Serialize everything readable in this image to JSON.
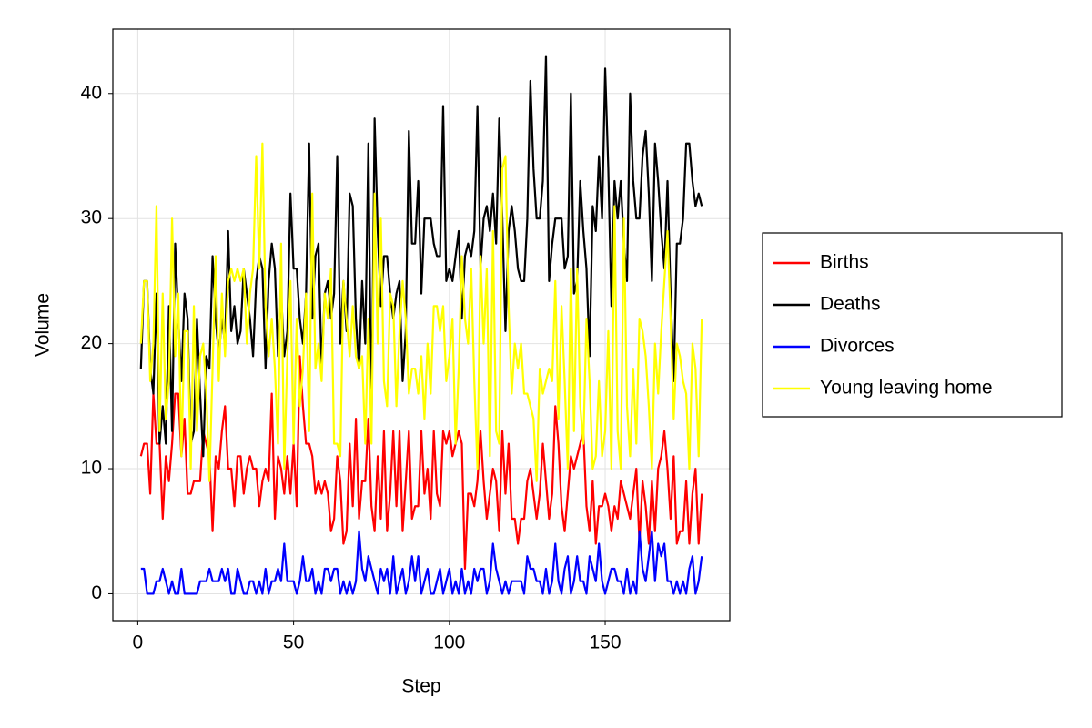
{
  "chart_data": {
    "type": "line",
    "xlabel": "Step",
    "ylabel": "Volume",
    "x": [
      1,
      2,
      3,
      4,
      5,
      6,
      7,
      8,
      9,
      10,
      11,
      12,
      13,
      14,
      15,
      16,
      17,
      18,
      19,
      20,
      21,
      22,
      23,
      24,
      25,
      26,
      27,
      28,
      29,
      30,
      31,
      32,
      33,
      34,
      35,
      36,
      37,
      38,
      39,
      40,
      41,
      42,
      43,
      44,
      45,
      46,
      47,
      48,
      49,
      50,
      51,
      52,
      53,
      54,
      55,
      56,
      57,
      58,
      59,
      60,
      61,
      62,
      63,
      64,
      65,
      66,
      67,
      68,
      69,
      70,
      71,
      72,
      73,
      74,
      75,
      76,
      77,
      78,
      79,
      80,
      81,
      82,
      83,
      84,
      85,
      86,
      87,
      88,
      89,
      90,
      91,
      92,
      93,
      94,
      95,
      96,
      97,
      98,
      99,
      100,
      101,
      102,
      103,
      104,
      105,
      106,
      107,
      108,
      109,
      110,
      111,
      112,
      113,
      114,
      115,
      116,
      117,
      118,
      119,
      120,
      121,
      122,
      123,
      124,
      125,
      126,
      127,
      128,
      129,
      130,
      131,
      132,
      133,
      134,
      135,
      136,
      137,
      138,
      139,
      140,
      141,
      142,
      143,
      144,
      145,
      146,
      147,
      148,
      149,
      150,
      151,
      152,
      153,
      154,
      155,
      156,
      157,
      158,
      159,
      160,
      161,
      162,
      163,
      164,
      165,
      166,
      167,
      168,
      169,
      170,
      171,
      172,
      173,
      174,
      175,
      176,
      177,
      178,
      179,
      180,
      181
    ],
    "series": [
      {
        "name": "Births",
        "color": "#ff0000",
        "values": [
          11,
          12,
          12,
          8,
          16,
          12,
          12,
          6,
          11,
          9,
          12,
          16,
          16,
          11,
          14,
          8,
          8,
          9,
          9,
          9,
          13,
          12,
          11,
          5,
          11,
          10,
          13,
          15,
          10,
          10,
          7,
          11,
          11,
          8,
          10,
          11,
          10,
          10,
          7,
          9,
          10,
          9,
          16,
          6,
          11,
          10,
          8,
          11,
          8,
          12,
          7,
          19,
          15,
          12,
          12,
          11,
          8,
          9,
          8,
          9,
          8,
          5,
          6,
          11,
          9,
          4,
          5,
          12,
          7,
          14,
          6,
          9,
          9,
          14,
          7,
          5,
          11,
          6,
          13,
          5,
          8,
          13,
          7,
          13,
          5,
          9,
          13,
          6,
          7,
          7,
          13,
          8,
          10,
          6,
          13,
          8,
          7,
          13,
          12,
          13,
          11,
          12,
          13,
          12,
          2,
          8,
          8,
          7,
          9,
          13,
          9,
          6,
          8,
          10,
          9,
          5,
          13,
          8,
          12,
          6,
          6,
          4,
          6,
          6,
          9,
          10,
          8,
          6,
          8,
          12,
          9,
          6,
          8,
          15,
          12,
          7,
          5,
          8,
          11,
          10,
          11,
          12,
          13,
          7,
          5,
          9,
          4,
          7,
          7,
          8,
          7,
          5,
          7,
          6,
          9,
          8,
          7,
          6,
          8,
          10,
          4,
          9,
          7,
          4,
          9,
          5,
          10,
          11,
          13,
          10,
          6,
          11,
          4,
          5,
          5,
          9,
          4,
          8,
          10,
          4,
          8
        ]
      },
      {
        "name": "Deaths",
        "color": "#000000",
        "values": [
          18,
          25,
          25,
          18,
          16,
          24,
          12,
          15,
          12,
          23,
          13,
          28,
          22,
          17,
          24,
          22,
          12,
          13,
          22,
          16,
          11,
          19,
          18,
          27,
          22,
          19,
          22,
          20,
          29,
          21,
          23,
          20,
          21,
          26,
          24,
          22,
          19,
          25,
          27,
          26,
          18,
          25,
          28,
          26,
          19,
          24,
          19,
          21,
          32,
          26,
          26,
          22,
          20,
          24,
          36,
          22,
          27,
          28,
          18,
          24,
          25,
          22,
          24,
          35,
          20,
          25,
          21,
          32,
          31,
          22,
          18,
          25,
          20,
          36,
          13,
          38,
          29,
          23,
          27,
          27,
          24,
          22,
          24,
          25,
          17,
          21,
          37,
          28,
          28,
          33,
          24,
          30,
          30,
          30,
          28,
          27,
          27,
          39,
          25,
          26,
          25,
          27,
          29,
          22,
          27,
          28,
          27,
          29,
          39,
          26,
          30,
          31,
          29,
          32,
          28,
          38,
          30,
          21,
          29,
          31,
          29,
          26,
          25,
          25,
          30,
          41,
          34,
          30,
          30,
          33,
          43,
          25,
          28,
          30,
          30,
          30,
          26,
          27,
          40,
          24,
          25,
          33,
          29,
          26,
          19,
          31,
          29,
          35,
          30,
          42,
          34,
          23,
          33,
          30,
          33,
          28,
          25,
          40,
          33,
          30,
          30,
          35,
          37,
          32,
          25,
          36,
          33,
          29,
          26,
          33,
          24,
          17,
          28,
          28,
          30,
          36,
          36,
          33,
          31,
          32,
          31
        ]
      },
      {
        "name": "Divorces",
        "color": "#0000ff",
        "values": [
          2,
          2,
          0,
          0,
          0,
          1,
          1,
          2,
          1,
          0,
          1,
          0,
          0,
          2,
          0,
          0,
          0,
          0,
          0,
          1,
          1,
          1,
          2,
          1,
          1,
          1,
          2,
          1,
          2,
          0,
          0,
          2,
          1,
          0,
          0,
          1,
          1,
          0,
          1,
          0,
          2,
          0,
          1,
          1,
          2,
          1,
          4,
          1,
          1,
          1,
          0,
          1,
          3,
          1,
          1,
          2,
          0,
          1,
          0,
          2,
          2,
          1,
          2,
          2,
          0,
          1,
          0,
          1,
          0,
          1,
          5,
          2,
          1,
          3,
          2,
          1,
          0,
          2,
          1,
          2,
          0,
          3,
          0,
          1,
          2,
          0,
          1,
          3,
          1,
          3,
          0,
          1,
          2,
          0,
          0,
          1,
          2,
          0,
          1,
          2,
          0,
          1,
          0,
          2,
          0,
          1,
          0,
          2,
          1,
          2,
          2,
          0,
          1,
          4,
          2,
          1,
          0,
          1,
          0,
          1,
          1,
          1,
          1,
          0,
          3,
          2,
          2,
          1,
          1,
          0,
          2,
          0,
          1,
          4,
          1,
          0,
          2,
          3,
          0,
          1,
          3,
          1,
          1,
          0,
          3,
          2,
          1,
          4,
          1,
          0,
          1,
          2,
          2,
          1,
          1,
          0,
          2,
          0,
          1,
          0,
          5,
          2,
          1,
          3,
          5,
          1,
          4,
          3,
          4,
          1,
          1,
          0,
          1,
          0,
          1,
          0,
          2,
          3,
          0,
          1,
          3
        ]
      },
      {
        "name": "Young leaving home",
        "color": "#ffff00",
        "values": [
          20,
          25,
          25,
          17,
          20,
          31,
          13,
          24,
          14,
          17,
          30,
          19,
          24,
          11,
          21,
          21,
          10,
          23,
          13,
          19,
          20,
          16,
          9,
          18,
          27,
          17,
          24,
          19,
          25,
          26,
          25,
          26,
          25,
          26,
          20,
          24,
          26,
          35,
          26,
          36,
          23,
          19,
          22,
          18,
          12,
          28,
          10,
          19,
          25,
          12,
          22,
          15,
          18,
          24,
          13,
          32,
          18,
          20,
          17,
          24,
          22,
          26,
          12,
          12,
          11,
          25,
          22,
          19,
          23,
          19,
          18,
          19,
          12,
          22,
          12,
          32,
          20,
          30,
          17,
          15,
          24,
          23,
          15,
          21,
          25,
          22,
          16,
          18,
          18,
          16,
          19,
          14,
          20,
          16,
          23,
          23,
          21,
          23,
          17,
          19,
          22,
          12,
          18,
          27,
          22,
          20,
          26,
          17,
          10,
          27,
          20,
          26,
          11,
          29,
          13,
          12,
          34,
          35,
          23,
          16,
          20,
          18,
          20,
          16,
          16,
          15,
          14,
          9,
          18,
          16,
          17,
          18,
          17,
          25,
          14,
          23,
          17,
          10,
          26,
          13,
          26,
          15,
          12,
          22,
          17,
          10,
          11,
          17,
          11,
          13,
          21,
          10,
          31,
          13,
          10,
          30,
          15,
          11,
          18,
          12,
          22,
          21,
          19,
          15,
          10,
          20,
          16,
          21,
          25,
          29,
          22,
          14,
          20,
          19,
          17,
          16,
          10,
          20,
          18,
          11,
          22
        ]
      }
    ],
    "xlim": [
      -8,
      190
    ],
    "xticks": [
      0,
      50,
      100,
      150
    ],
    "ylim": [
      -2.15,
      45.15
    ],
    "yticks": [
      0,
      10,
      20,
      30,
      40
    ],
    "grid": true,
    "legend": "right"
  }
}
